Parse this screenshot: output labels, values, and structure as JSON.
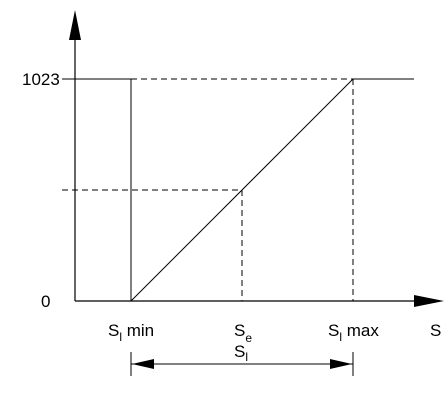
{
  "y_axis": {
    "top_label": "1023",
    "bottom_label": "0"
  },
  "x_axis": {
    "label": "S",
    "ticks": [
      {
        "main": "S",
        "sub": "l",
        "suffix": " min"
      },
      {
        "main": "S",
        "sub": "e",
        "suffix": ""
      },
      {
        "main": "S",
        "sub": "l",
        "suffix": " max"
      }
    ]
  },
  "span": {
    "main": "S",
    "sub": "l"
  }
}
